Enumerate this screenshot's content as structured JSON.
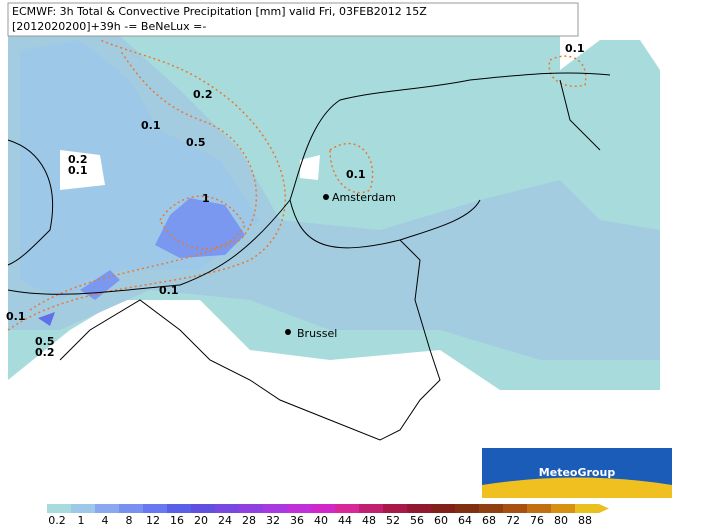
{
  "header": {
    "line1": "ECMWF: 3h Total & Convective Precipitation [mm] valid Fri, 03FEB2012 15Z",
    "line2": "[2012020200]+39h -= BeNeLux =-"
  },
  "contour_labels": [
    "0.1",
    "0.2",
    "0.1",
    "0.5",
    "0.2",
    "0.1",
    "1",
    "0.1",
    "0.1",
    "0.1",
    "0.5",
    "0.2"
  ],
  "cities": [
    "Amsterdam",
    "Brussel"
  ],
  "logo": "MeteoGroup",
  "colorbar": {
    "labels": [
      "0.2",
      "1",
      "4",
      "8",
      "12",
      "16",
      "20",
      "24",
      "28",
      "32",
      "36",
      "40",
      "44",
      "48",
      "52",
      "56",
      "60",
      "64",
      "68",
      "72",
      "76",
      "80",
      "88"
    ],
    "colors": [
      "#a8dcdc",
      "#9ec8e8",
      "#8aa8f0",
      "#7890f0",
      "#6878f0",
      "#5860e8",
      "#6050e0",
      "#7848e0",
      "#9040e0",
      "#a838e0",
      "#c030d8",
      "#d028c8",
      "#d82898",
      "#c02070",
      "#a81848",
      "#901830",
      "#802018",
      "#803010",
      "#904010",
      "#a85010",
      "#c07010",
      "#d89010",
      "#e8c020"
    ]
  }
}
